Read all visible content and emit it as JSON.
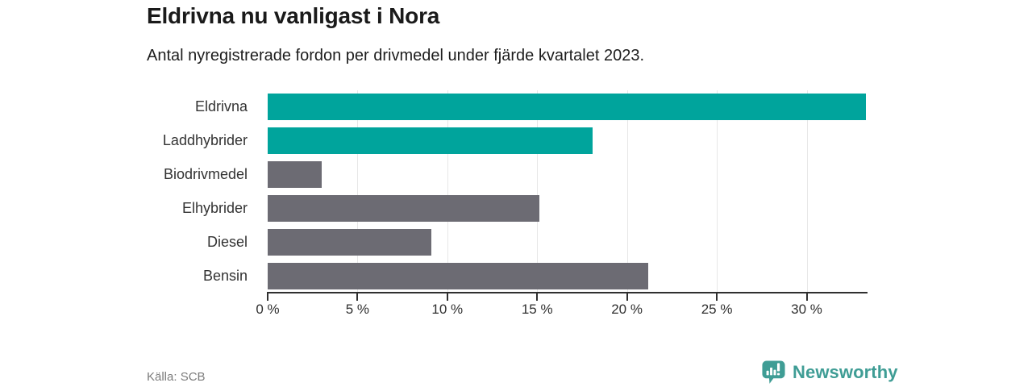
{
  "header": {
    "title": "Eldrivna nu vanligast i Nora",
    "subtitle": "Antal nyregistrerade fordon per drivmedel under fjärde kvartalet 2023."
  },
  "chart_data": {
    "type": "bar",
    "orientation": "horizontal",
    "title": "Eldrivna nu vanligast i Nora",
    "subtitle": "Antal nyregistrerade fordon per drivmedel under fjärde kvartalet 2023.",
    "categories": [
      "Eldrivna",
      "Laddhybrider",
      "Biodrivmedel",
      "Elhybrider",
      "Diesel",
      "Bensin"
    ],
    "values": [
      33.3,
      18.1,
      3.0,
      15.1,
      9.1,
      21.2
    ],
    "unit": "%",
    "bar_colors": [
      "#00a49c",
      "#00a49c",
      "#6c6b73",
      "#6c6b73",
      "#6c6b73",
      "#6c6b73"
    ],
    "xlabel": "",
    "ylabel": "",
    "xlim": [
      0,
      33.3
    ],
    "x_ticks": [
      0,
      5,
      10,
      15,
      20,
      25,
      30
    ],
    "x_tick_labels": [
      "0 %",
      "5 %",
      "10 %",
      "15 %",
      "20 %",
      "25 %",
      "30 %"
    ],
    "grid": "vertical",
    "legend": "none"
  },
  "footer": {
    "source": "Källa: SCB",
    "brand": "Newsworthy"
  },
  "colors": {
    "accent_teal": "#00a49c",
    "neutral_gray": "#6c6b73",
    "brand_teal": "#3f9d95",
    "grid": "#e7e7e7",
    "axis": "#2f2f2f",
    "text": "#1a1a1a",
    "muted": "#7c7c7c"
  }
}
